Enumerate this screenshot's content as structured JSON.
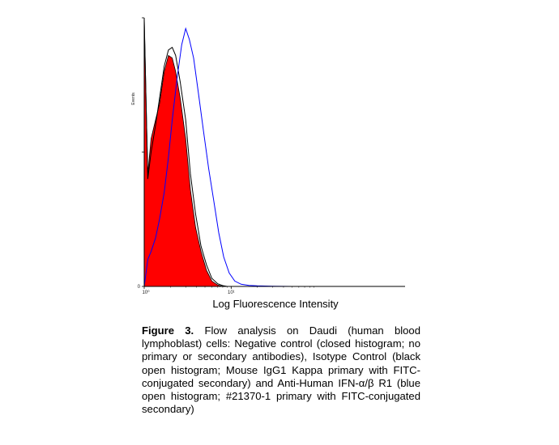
{
  "chart_data": {
    "type": "area",
    "xlabel": "Log Fluorescence Intensity",
    "ylabel": "Events",
    "x_scale": "log",
    "xlim": [
      1,
      1000
    ],
    "ylim": [
      0,
      1
    ],
    "x_tick_labels": [
      "10⁰",
      "10¹"
    ],
    "y_tick_labels": [
      "0"
    ],
    "grid": false,
    "series": [
      {
        "name": "Negative control",
        "style": "filled",
        "color": "#ff0000",
        "x": [
          1,
          1.1,
          1.2,
          1.35,
          1.5,
          1.7,
          1.9,
          2.1,
          2.3,
          2.6,
          3.0,
          3.4,
          3.9,
          4.5,
          5.2,
          6.0,
          7.0,
          8.0
        ],
        "values": [
          1.0,
          0.42,
          0.55,
          0.62,
          0.68,
          0.8,
          0.86,
          0.85,
          0.8,
          0.7,
          0.55,
          0.36,
          0.22,
          0.13,
          0.06,
          0.02,
          0.005,
          0.0
        ]
      },
      {
        "name": "Isotype Control",
        "style": "open",
        "color": "#000000",
        "x": [
          1,
          1.1,
          1.2,
          1.35,
          1.5,
          1.7,
          1.9,
          2.1,
          2.3,
          2.6,
          3.0,
          3.4,
          3.9,
          4.5,
          5.2,
          6.0,
          7.0,
          8.0,
          9.0
        ],
        "values": [
          1.0,
          0.4,
          0.5,
          0.6,
          0.7,
          0.82,
          0.88,
          0.89,
          0.86,
          0.76,
          0.62,
          0.42,
          0.27,
          0.15,
          0.08,
          0.03,
          0.01,
          0.003,
          0.0
        ]
      },
      {
        "name": "Anti-Human IFN-α/β R1",
        "style": "open",
        "color": "#0000ff",
        "x": [
          1,
          1.1,
          1.2,
          1.35,
          1.5,
          1.7,
          1.9,
          2.1,
          2.4,
          2.7,
          3.0,
          3.3,
          3.7,
          4.2,
          4.8,
          5.5,
          6.3,
          7.2,
          8.2,
          9.5,
          11,
          13,
          16,
          20,
          30,
          50
        ],
        "values": [
          0.0,
          0.1,
          0.13,
          0.18,
          0.25,
          0.35,
          0.48,
          0.62,
          0.78,
          0.9,
          0.96,
          0.92,
          0.85,
          0.72,
          0.58,
          0.44,
          0.32,
          0.2,
          0.11,
          0.05,
          0.02,
          0.008,
          0.004,
          0.002,
          0.001,
          0.0
        ]
      }
    ]
  },
  "caption": {
    "label": "Figure 3.",
    "text": " Flow analysis on Daudi (human blood lymphoblast) cells: Negative control (closed histogram; no primary or secondary antibodies), Isotype Control (black open histogram; Mouse IgG1 Kappa primary with FITC-conjugated secondary) and Anti-Human IFN-α/β R1 (blue open histogram; #21370-1 primary with FITC-conjugated secondary)"
  }
}
